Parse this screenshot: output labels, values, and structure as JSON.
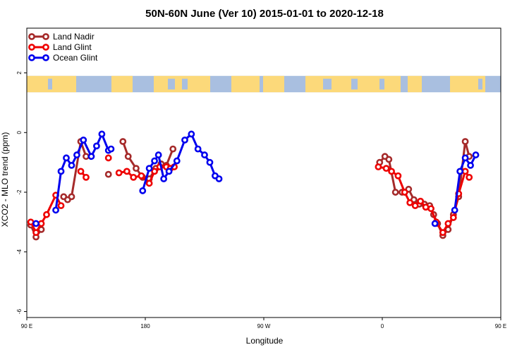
{
  "chart_data": {
    "type": "line",
    "title": "50N-60N June (Ver 10)   2015-01-01 to 2020-12-18",
    "xlabel": "Longitude",
    "ylabel": "XCO2 - MLO trend (ppm)",
    "xlim": [
      90,
      450
    ],
    "ylim": [
      -6.2,
      3.5
    ],
    "x_unit_note": "",
    "x_ticks": [
      {
        "value": 90,
        "label": "90 E"
      },
      {
        "value": 180,
        "label": "180"
      },
      {
        "value": 270,
        "label": "90 W"
      },
      {
        "value": 360,
        "label": "0"
      },
      {
        "value": 450,
        "label": "90 E"
      },
      {
        "value": 540,
        "label": "180"
      }
    ],
    "y_ticks": [
      {
        "value": 2,
        "label": "2"
      },
      {
        "value": 0,
        "label": "0"
      },
      {
        "value": -2,
        "label": "-2"
      },
      {
        "value": -4,
        "label": "-4"
      },
      {
        "value": -6,
        "label": "-6"
      }
    ],
    "grid": false,
    "legend_position": "top-left",
    "map_strip": {
      "y_top": 1.9,
      "y_bottom": 1.35,
      "ocean_color": "#a9bfe0",
      "land_color": "#fcd97a"
    },
    "series": [
      {
        "name": "Land Nadir",
        "color": "#a52a2a",
        "segments": [
          [
            [
              93,
              -3.1
            ],
            [
              97,
              -3.5
            ],
            [
              101,
              -3.25
            ]
          ],
          [
            [
              118,
              -2.15
            ],
            [
              121,
              -2.25
            ],
            [
              124,
              -2.15
            ],
            [
              131,
              -0.3
            ],
            [
              135,
              -0.8
            ]
          ],
          [
            [
              152,
              -1.4
            ]
          ],
          [
            [
              163,
              -0.3
            ],
            [
              167,
              -0.8
            ],
            [
              173,
              -1.2
            ],
            [
              178,
              -1.5
            ],
            [
              183,
              -1.55
            ],
            [
              188,
              -1.2
            ],
            [
              192,
              -1.05
            ],
            [
              196,
              -1.1
            ],
            [
              201,
              -0.55
            ]
          ],
          [
            [
              358,
              -1.0
            ],
            [
              362,
              -0.8
            ],
            [
              365,
              -0.9
            ],
            [
              370,
              -2.0
            ],
            [
              375,
              -2.0
            ],
            [
              380,
              -1.9
            ],
            [
              384,
              -2.25
            ],
            [
              388,
              -2.4
            ],
            [
              392,
              -2.4
            ],
            [
              396,
              -2.45
            ],
            [
              399,
              -2.75
            ],
            [
              402,
              -3.05
            ],
            [
              406,
              -3.45
            ],
            [
              410,
              -3.25
            ],
            [
              414,
              -2.75
            ],
            [
              418,
              -2.15
            ],
            [
              423,
              -0.3
            ],
            [
              426,
              -0.8
            ]
          ]
        ]
      },
      {
        "name": "Land Glint",
        "color": "#ee0000",
        "segments": [
          [
            [
              93,
              -3.0
            ],
            [
              97,
              -3.35
            ],
            [
              101,
              -3.05
            ],
            [
              105,
              -2.75
            ],
            [
              112,
              -2.1
            ],
            [
              116,
              -2.45
            ]
          ],
          [
            [
              131,
              -1.3
            ],
            [
              135,
              -1.5
            ]
          ],
          [
            [
              152,
              -0.85
            ]
          ],
          [
            [
              160,
              -1.35
            ],
            [
              166,
              -1.3
            ],
            [
              171,
              -1.5
            ],
            [
              177,
              -1.45
            ],
            [
              183,
              -1.7
            ],
            [
              187,
              -1.3
            ],
            [
              191,
              -1.15
            ],
            [
              196,
              -1.15
            ],
            [
              199,
              -1.2
            ],
            [
              202,
              -1.15
            ]
          ],
          [
            [
              357,
              -1.15
            ],
            [
              363,
              -1.2
            ],
            [
              367,
              -1.3
            ],
            [
              372,
              -1.45
            ],
            [
              377,
              -2.0
            ],
            [
              381,
              -2.35
            ],
            [
              385,
              -2.45
            ],
            [
              389,
              -2.3
            ],
            [
              393,
              -2.5
            ],
            [
              397,
              -2.55
            ],
            [
              401,
              -3.0
            ],
            [
              406,
              -3.35
            ],
            [
              410,
              -3.05
            ],
            [
              414,
              -2.85
            ],
            [
              418,
              -2.05
            ],
            [
              423,
              -1.3
            ],
            [
              426,
              -1.5
            ]
          ]
        ]
      },
      {
        "name": "Ocean Glint",
        "color": "#0000ee",
        "segments": [
          [
            [
              97,
              -3.05
            ]
          ],
          [
            [
              112,
              -2.6
            ],
            [
              116,
              -1.3
            ],
            [
              120,
              -0.85
            ],
            [
              124,
              -1.1
            ],
            [
              128,
              -0.75
            ],
            [
              133,
              -0.25
            ],
            [
              139,
              -0.8
            ],
            [
              143,
              -0.45
            ],
            [
              147,
              -0.05
            ],
            [
              152,
              -0.6
            ],
            [
              154,
              -0.55
            ]
          ],
          [
            [
              178,
              -1.95
            ],
            [
              183,
              -1.2
            ],
            [
              187,
              -0.95
            ],
            [
              190,
              -0.75
            ],
            [
              194,
              -1.55
            ],
            [
              198,
              -1.3
            ],
            [
              204,
              -0.95
            ],
            [
              210,
              -0.25
            ],
            [
              215,
              -0.05
            ],
            [
              220,
              -0.55
            ],
            [
              225,
              -0.75
            ],
            [
              229,
              -1.0
            ],
            [
              233,
              -1.45
            ],
            [
              236,
              -1.55
            ]
          ],
          [
            [
              400,
              -3.05
            ]
          ],
          [
            [
              415,
              -2.6
            ],
            [
              419,
              -1.3
            ],
            [
              423,
              -0.85
            ],
            [
              427,
              -1.1
            ],
            [
              431,
              -0.75
            ]
          ]
        ]
      }
    ]
  }
}
